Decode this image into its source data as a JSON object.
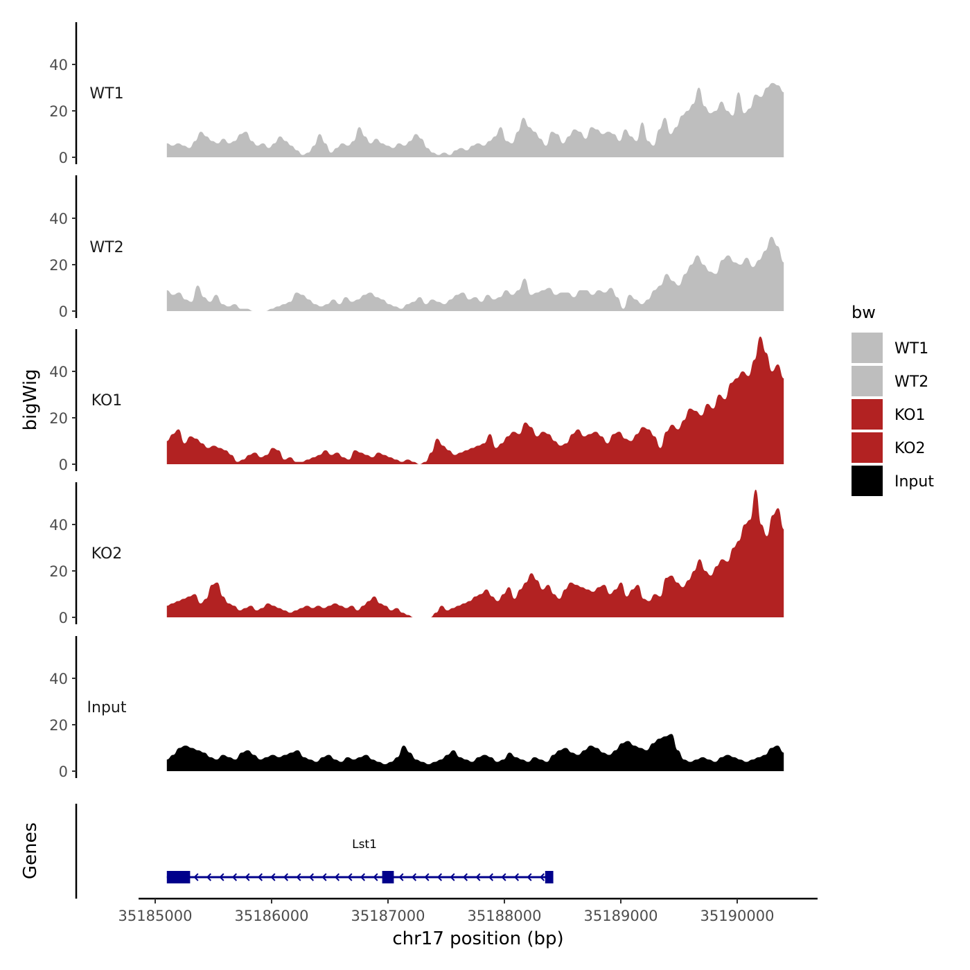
{
  "chart_data": {
    "type": "area",
    "chromosome": "chr17",
    "xlabel": "chr17 position (bp)",
    "ylabel": "bigWig",
    "genes_panel_label": "Genes",
    "x_range": [
      35185000,
      35190700
    ],
    "x_ticks": [
      35185000,
      35186000,
      35187000,
      35188000,
      35189000,
      35190000
    ],
    "x_tick_labels": [
      "35185000",
      "35186000",
      "35187000",
      "35188000",
      "35189000",
      "35190000"
    ],
    "ylim": [
      0,
      58
    ],
    "y_ticks": [
      0,
      20,
      40
    ],
    "y_tick_labels": [
      "0",
      "20",
      "40"
    ],
    "grid": false,
    "track_x_start": 35185100,
    "track_x_end": 35190400,
    "legend": {
      "title": "bw",
      "position": "right",
      "entries": [
        {
          "name": "WT1",
          "color": "#BEBEBE"
        },
        {
          "name": "WT2",
          "color": "#BEBEBE"
        },
        {
          "name": "KO1",
          "color": "#B22222"
        },
        {
          "name": "KO2",
          "color": "#B22222"
        },
        {
          "name": "Input",
          "color": "#000000"
        }
      ]
    },
    "series": [
      {
        "name": "WT1",
        "color": "#BEBEBE",
        "values": [
          6,
          5,
          6,
          5,
          4,
          7,
          11,
          9,
          7,
          6,
          8,
          6,
          7,
          10,
          11,
          7,
          5,
          6,
          4,
          6,
          9,
          7,
          5,
          3,
          1,
          2,
          5,
          10,
          6,
          2,
          4,
          6,
          5,
          7,
          13,
          9,
          6,
          8,
          6,
          5,
          4,
          6,
          5,
          7,
          10,
          8,
          4,
          2,
          1,
          2,
          1,
          3,
          4,
          3,
          5,
          6,
          5,
          7,
          9,
          13,
          7,
          6,
          11,
          17,
          13,
          11,
          8,
          5,
          11,
          10,
          6,
          9,
          12,
          11,
          8,
          13,
          12,
          10,
          11,
          10,
          7,
          12,
          9,
          7,
          15,
          7,
          5,
          12,
          17,
          10,
          13,
          18,
          20,
          23,
          30,
          22,
          19,
          20,
          24,
          20,
          18,
          28,
          19,
          21,
          27,
          26,
          30,
          32,
          31,
          28
        ]
      },
      {
        "name": "WT2",
        "color": "#BEBEBE",
        "values": [
          9,
          7,
          8,
          5,
          4,
          11,
          6,
          4,
          7,
          3,
          2,
          3,
          1,
          1,
          0,
          0,
          0,
          1,
          2,
          3,
          4,
          8,
          7,
          5,
          3,
          2,
          3,
          5,
          3,
          6,
          4,
          5,
          7,
          8,
          6,
          5,
          3,
          2,
          1,
          3,
          4,
          6,
          3,
          5,
          4,
          3,
          5,
          7,
          8,
          5,
          6,
          4,
          7,
          5,
          6,
          9,
          7,
          9,
          14,
          7,
          8,
          9,
          10,
          7,
          8,
          8,
          6,
          9,
          9,
          7,
          9,
          8,
          10,
          6,
          1,
          7,
          5,
          3,
          5,
          9,
          11,
          16,
          13,
          11,
          16,
          20,
          24,
          20,
          17,
          16,
          22,
          24,
          21,
          20,
          23,
          19,
          22,
          26,
          32,
          28,
          21
        ]
      },
      {
        "name": "KO1",
        "color": "#B22222",
        "values": [
          10,
          13,
          15,
          9,
          12,
          11,
          9,
          7,
          8,
          7,
          6,
          4,
          1,
          2,
          4,
          5,
          3,
          4,
          7,
          6,
          2,
          3,
          1,
          1,
          2,
          3,
          4,
          6,
          4,
          5,
          3,
          2,
          6,
          5,
          4,
          3,
          5,
          4,
          3,
          2,
          1,
          2,
          1,
          0,
          1,
          5,
          11,
          8,
          6,
          4,
          5,
          6,
          7,
          8,
          9,
          13,
          7,
          9,
          12,
          14,
          13,
          18,
          16,
          12,
          14,
          13,
          10,
          8,
          9,
          13,
          15,
          12,
          13,
          14,
          12,
          9,
          13,
          14,
          11,
          10,
          13,
          16,
          15,
          12,
          7,
          14,
          17,
          15,
          19,
          24,
          23,
          21,
          26,
          24,
          30,
          28,
          35,
          37,
          40,
          38,
          45,
          55,
          48,
          40,
          43,
          37
        ]
      },
      {
        "name": "KO2",
        "color": "#B22222",
        "values": [
          5,
          6,
          7,
          8,
          9,
          10,
          6,
          8,
          14,
          15,
          9,
          6,
          5,
          3,
          4,
          5,
          3,
          4,
          6,
          5,
          4,
          3,
          2,
          3,
          4,
          5,
          4,
          5,
          4,
          5,
          6,
          5,
          4,
          5,
          3,
          5,
          7,
          9,
          6,
          5,
          3,
          4,
          2,
          1,
          0,
          0,
          0,
          0,
          2,
          5,
          3,
          4,
          5,
          6,
          7,
          9,
          10,
          12,
          9,
          7,
          10,
          13,
          8,
          12,
          15,
          19,
          16,
          12,
          14,
          10,
          8,
          12,
          15,
          14,
          13,
          12,
          11,
          13,
          14,
          10,
          12,
          15,
          9,
          12,
          14,
          8,
          7,
          10,
          9,
          17,
          18,
          15,
          13,
          16,
          20,
          25,
          20,
          18,
          22,
          25,
          24,
          30,
          33,
          40,
          42,
          55,
          40,
          35,
          44,
          47,
          38
        ]
      },
      {
        "name": "Input",
        "color": "#000000",
        "values": [
          5,
          7,
          10,
          11,
          10,
          9,
          8,
          6,
          5,
          7,
          6,
          5,
          8,
          9,
          7,
          5,
          6,
          7,
          6,
          7,
          8,
          9,
          6,
          5,
          4,
          6,
          7,
          5,
          4,
          6,
          5,
          6,
          7,
          5,
          4,
          3,
          4,
          6,
          11,
          8,
          5,
          4,
          3,
          4,
          5,
          7,
          9,
          6,
          5,
          4,
          6,
          7,
          6,
          4,
          5,
          8,
          6,
          5,
          4,
          6,
          5,
          4,
          7,
          9,
          10,
          8,
          7,
          9,
          11,
          10,
          8,
          7,
          9,
          12,
          13,
          11,
          10,
          9,
          12,
          14,
          15,
          16,
          9,
          5,
          4,
          5,
          6,
          5,
          4,
          6,
          7,
          6,
          5,
          4,
          5,
          6,
          7,
          10,
          11,
          8
        ]
      }
    ],
    "genes": [
      {
        "name": "Lst1",
        "start": 35185100,
        "end": 35188400,
        "strand": "-",
        "exons": [
          [
            35185100,
            35185300
          ],
          [
            35186950,
            35187050
          ],
          [
            35188350,
            35188420
          ]
        ]
      }
    ]
  }
}
